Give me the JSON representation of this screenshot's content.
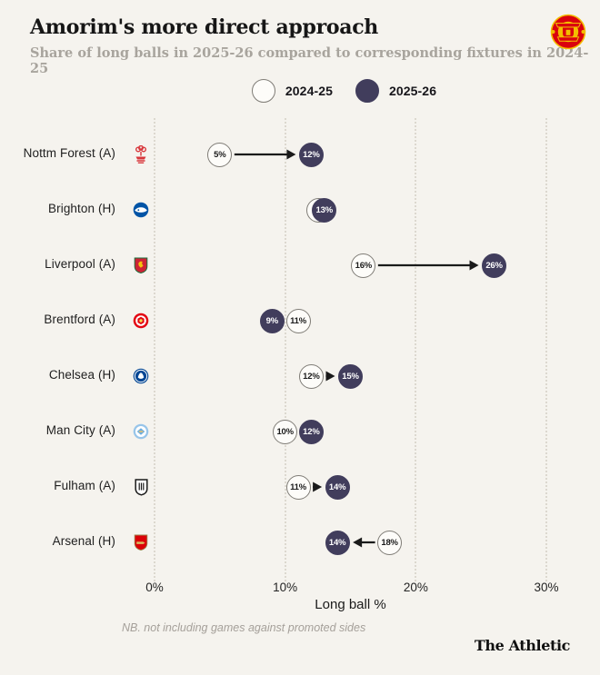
{
  "page": {
    "background": "#f5f3ee",
    "title": "Amorim's more direct approach",
    "subtitle": "Share of long balls in 2025-26 compared to corresponding fixtures in 2024-25",
    "footnote": "NB. not including games against promoted sides",
    "brand": "The Athletic",
    "club_badge": "Manchester United crest"
  },
  "legend": {
    "items": [
      {
        "label": "2024-25",
        "fill": "#fdfcf9",
        "stroke": "#7f7c76"
      },
      {
        "label": "2025-26",
        "fill": "#413d5c",
        "stroke": "#413d5c"
      }
    ]
  },
  "chart_data": {
    "type": "scatter",
    "subtype": "dumbbell-dot-arrow",
    "xlabel": "Long ball %",
    "x_ticks": [
      "0%",
      "10%",
      "20%",
      "30%"
    ],
    "x_tick_values": [
      0,
      10,
      20,
      30
    ],
    "xlim": [
      0,
      30
    ],
    "grid": "vertical-dotted",
    "legend_position": "top-center",
    "series_names": [
      "2024-25",
      "2025-26"
    ],
    "colors": {
      "open_fill": "#fdfcf9",
      "open_stroke": "#7f7c76",
      "dark_fill": "#413d5c",
      "arrow": "#1a1a1a",
      "gridline": "#dcd8cf"
    },
    "rows": [
      {
        "team": "Nottm Forest (A)",
        "crest": "nottm-forest",
        "v2024": 5,
        "v2025": 12,
        "arrow": true,
        "show_2024_label": true,
        "top": "2025"
      },
      {
        "team": "Brighton (H)",
        "crest": "brighton",
        "v2024": 13,
        "v2025": 13,
        "arrow": false,
        "show_2024_label": false,
        "top": "2025"
      },
      {
        "team": "Liverpool (A)",
        "crest": "liverpool",
        "v2024": 16,
        "v2025": 26,
        "arrow": true,
        "show_2024_label": true,
        "top": "2025"
      },
      {
        "team": "Brentford (A)",
        "crest": "brentford",
        "v2024": 11,
        "v2025": 9,
        "arrow": false,
        "show_2024_label": true,
        "top": "2024"
      },
      {
        "team": "Chelsea (H)",
        "crest": "chelsea",
        "v2024": 12,
        "v2025": 15,
        "arrow": true,
        "show_2024_label": true,
        "top": "2025"
      },
      {
        "team": "Man City (A)",
        "crest": "man-city",
        "v2024": 10,
        "v2025": 12,
        "arrow": false,
        "show_2024_label": true,
        "top": "2025"
      },
      {
        "team": "Fulham (A)",
        "crest": "fulham",
        "v2024": 11,
        "v2025": 14,
        "arrow": true,
        "show_2024_label": true,
        "top": "2025"
      },
      {
        "team": "Arsenal (H)",
        "crest": "arsenal",
        "v2024": 18,
        "v2025": 14,
        "arrow": true,
        "show_2024_label": true,
        "top": "2025"
      }
    ]
  }
}
